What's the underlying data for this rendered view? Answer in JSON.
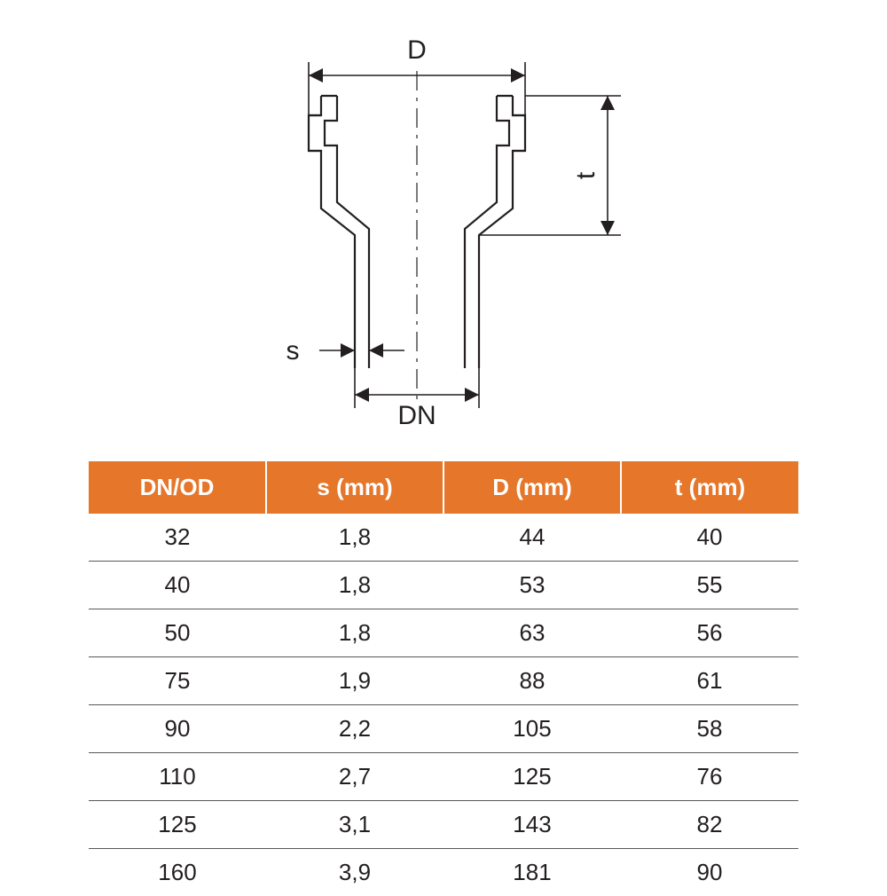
{
  "diagram": {
    "labels": {
      "D": "D",
      "t": "t",
      "DN": "DN",
      "s": "s"
    },
    "colors": {
      "stroke": "#231f20",
      "centerline": "#231f20",
      "background": "#ffffff"
    },
    "line_widths": {
      "outline": 2.2,
      "dim": 1.6,
      "center": 1.2
    }
  },
  "table": {
    "header_bg": "#e6762a",
    "header_fg": "#ffffff",
    "cell_fg": "#231f20",
    "border_color": "#58585a",
    "header_fontsize": 26,
    "cell_fontsize": 26,
    "columns": [
      "DN/OD",
      "s (mm)",
      "D (mm)",
      "t (mm)"
    ],
    "rows": [
      [
        "32",
        "1,8",
        "44",
        "40"
      ],
      [
        "40",
        "1,8",
        "53",
        "55"
      ],
      [
        "50",
        "1,8",
        "63",
        "56"
      ],
      [
        "75",
        "1,9",
        "88",
        "61"
      ],
      [
        "90",
        "2,2",
        "105",
        "58"
      ],
      [
        "110",
        "2,7",
        "125",
        "76"
      ],
      [
        "125",
        "3,1",
        "143",
        "82"
      ],
      [
        "160",
        "3,9",
        "181",
        "90"
      ]
    ]
  }
}
